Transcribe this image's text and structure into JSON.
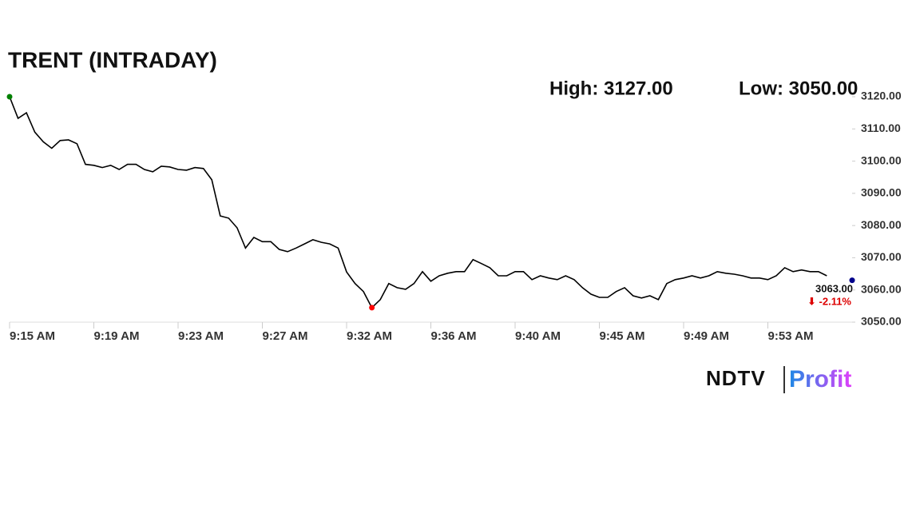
{
  "chart_data": {
    "type": "line",
    "title": "TRENT (INTRADAY)",
    "high_label": "High: 3127.00",
    "low_label": "Low: 3050.00",
    "last_label": "3063.00",
    "change_label": "⬇ -2.11%",
    "brand": "NDTV",
    "brand_sub": "Profit",
    "color": "#000000",
    "start_color": "#008000",
    "low_color": "#ff0000",
    "end_color": "#00008b",
    "categories": [
      "9:15 AM",
      null,
      null,
      null,
      null,
      null,
      null,
      null,
      null,
      null,
      "9:19 AM",
      null,
      null,
      null,
      null,
      null,
      null,
      null,
      null,
      null,
      "9:23 AM",
      null,
      null,
      null,
      null,
      null,
      null,
      null,
      null,
      null,
      "9:27 AM",
      null,
      null,
      null,
      null,
      null,
      null,
      null,
      null,
      null,
      "9:32 AM",
      null,
      null,
      null,
      null,
      null,
      null,
      null,
      null,
      null,
      "9:36 AM",
      null,
      null,
      null,
      null,
      null,
      null,
      null,
      null,
      null,
      "9:40 AM",
      null,
      null,
      null,
      null,
      null,
      null,
      null,
      null,
      null,
      "9:45 AM",
      null,
      null,
      null,
      null,
      null,
      null,
      null,
      null,
      null,
      "9:49 AM",
      null,
      null,
      null,
      null,
      null,
      null,
      null,
      null,
      null,
      "9:53 AM",
      null,
      null,
      null,
      null,
      null,
      null,
      null,
      null,
      null,
      null
    ],
    "values": [
      3120,
      3113.3,
      3115,
      3109,
      3106,
      3104,
      3106.4,
      3106.6,
      3105.4,
      3099,
      3098.7,
      3098,
      3098.7,
      3097.4,
      3099,
      3099,
      3097.4,
      3096.7,
      3098.4,
      3098.2,
      3097.4,
      3097.2,
      3098,
      3097.7,
      3094.2,
      3083,
      3082.3,
      3079.3,
      3073,
      3076.3,
      3075,
      3075,
      3072.6,
      3071.9,
      3073,
      3074.3,
      3075.6,
      3074.8,
      3074.3,
      3073,
      3065.6,
      3062,
      3059.5,
      3054.5,
      3057,
      3062,
      3060.7,
      3060.2,
      3062,
      3065.7,
      3062.7,
      3064.4,
      3065.2,
      3065.7,
      3065.7,
      3069.4,
      3068.2,
      3066.9,
      3064.4,
      3064.4,
      3065.7,
      3065.7,
      3063.2,
      3064.4,
      3063.7,
      3063.2,
      3064.4,
      3063.2,
      3060.7,
      3058.7,
      3057.7,
      3057.7,
      3059.5,
      3060.7,
      3058.2,
      3057.5,
      3058.2,
      3057,
      3062,
      3063.2,
      3063.7,
      3064.4,
      3063.7,
      3064.4,
      3065.7,
      3065.2,
      3064.9,
      3064.4,
      3063.7,
      3063.7,
      3063.2,
      3064.4,
      3066.9,
      3065.7,
      3066.2,
      3065.7,
      3065.7,
      3064.4,
      null,
      null,
      3063
    ],
    "ylim": [
      3050,
      3120
    ],
    "yticks": [
      {
        "value": 3050,
        "label": "3050.00"
      },
      {
        "value": 3060,
        "label": "3060.00"
      },
      {
        "value": 3070,
        "label": "3070.00"
      },
      {
        "value": 3080,
        "label": "3080.00"
      },
      {
        "value": 3090,
        "label": "3090.00"
      },
      {
        "value": 3100,
        "label": "3100.00"
      },
      {
        "value": 3110,
        "label": "3110.00"
      },
      {
        "value": 3120,
        "label": "3120.00"
      }
    ]
  }
}
